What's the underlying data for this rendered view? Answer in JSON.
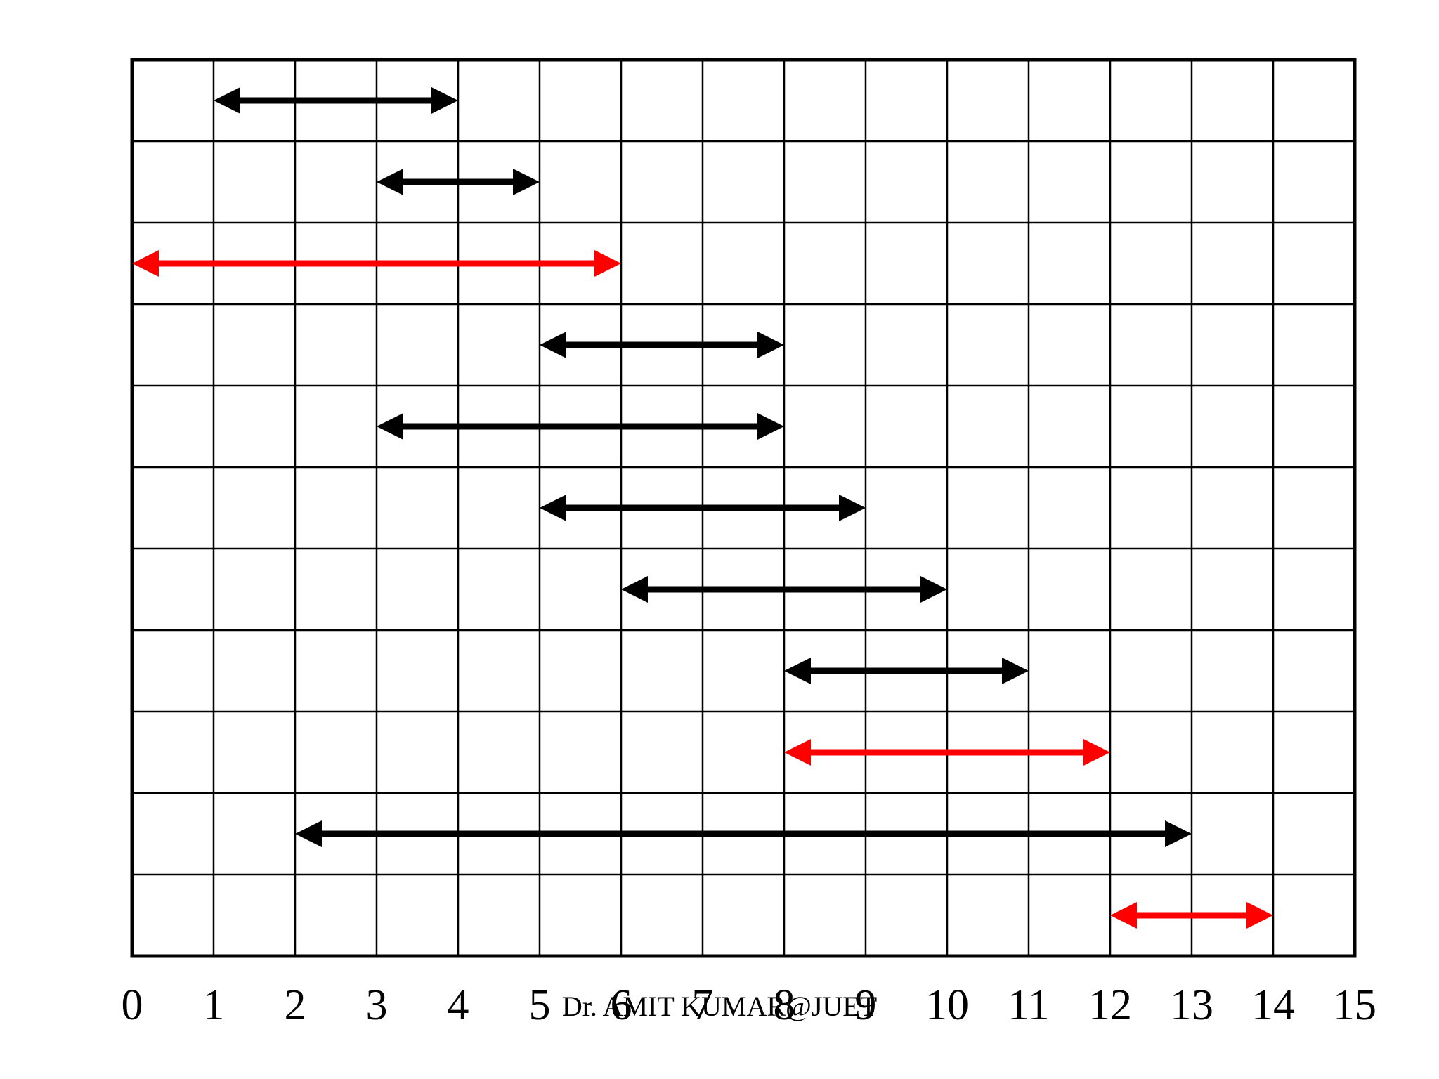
{
  "chart_data": {
    "type": "interval",
    "xlim": [
      0,
      15
    ],
    "xticks": [
      0,
      1,
      2,
      3,
      4,
      5,
      6,
      7,
      8,
      9,
      10,
      11,
      12,
      13,
      14,
      15
    ],
    "grid": true,
    "intervals": [
      {
        "start": 1,
        "end": 4,
        "color": "#000000"
      },
      {
        "start": 3,
        "end": 5,
        "color": "#000000"
      },
      {
        "start": 0,
        "end": 6,
        "color": "#ff0000"
      },
      {
        "start": 5,
        "end": 8,
        "color": "#000000"
      },
      {
        "start": 3,
        "end": 8,
        "color": "#000000"
      },
      {
        "start": 5,
        "end": 9,
        "color": "#000000"
      },
      {
        "start": 6,
        "end": 10,
        "color": "#000000"
      },
      {
        "start": 8,
        "end": 11,
        "color": "#000000"
      },
      {
        "start": 8,
        "end": 12,
        "color": "#ff0000"
      },
      {
        "start": 2,
        "end": 13,
        "color": "#000000"
      },
      {
        "start": 12,
        "end": 14,
        "color": "#ff0000"
      }
    ],
    "annotation": "Dr. AMIT KUMAR@JUET"
  }
}
